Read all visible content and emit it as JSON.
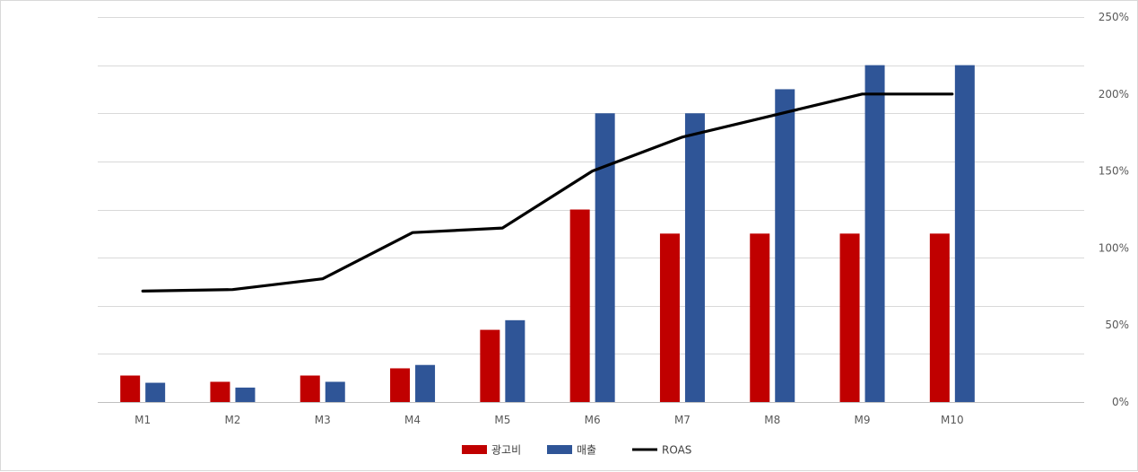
{
  "chart_data": {
    "type": "bar",
    "categories": [
      "M1",
      "M2",
      "M3",
      "M4",
      "M5",
      "M6",
      "M7",
      "M8",
      "M9",
      "M10"
    ],
    "series": [
      {
        "name": "광고비",
        "type": "bar",
        "axis": "left",
        "color": "#c00000",
        "values": [
          0.55,
          0.42,
          0.55,
          0.7,
          1.5,
          4.0,
          3.5,
          3.5,
          3.5,
          3.5
        ]
      },
      {
        "name": "매출",
        "type": "bar",
        "axis": "left",
        "color": "#2f5597",
        "values": [
          0.4,
          0.3,
          0.42,
          0.77,
          1.7,
          6.0,
          6.0,
          6.5,
          7.0,
          7.0
        ]
      },
      {
        "name": "ROAS",
        "type": "line",
        "axis": "right",
        "color": "#000000",
        "values": [
          72,
          73,
          80,
          110,
          113,
          150,
          172,
          186,
          200,
          200
        ]
      }
    ],
    "y_left": {
      "min": 0,
      "max": 8,
      "ticks": [
        0,
        1,
        2,
        3,
        4,
        5,
        6,
        7,
        8
      ],
      "labels_shown": false
    },
    "y_right": {
      "min": 0,
      "max": 250,
      "ticks": [
        0,
        50,
        100,
        150,
        200,
        250
      ],
      "tick_labels": [
        "0%",
        "50%",
        "100%",
        "150%",
        "200%",
        "250%"
      ]
    },
    "grid": true,
    "legend_position": "bottom",
    "title": "",
    "xlabel": "",
    "ylabel": ""
  }
}
